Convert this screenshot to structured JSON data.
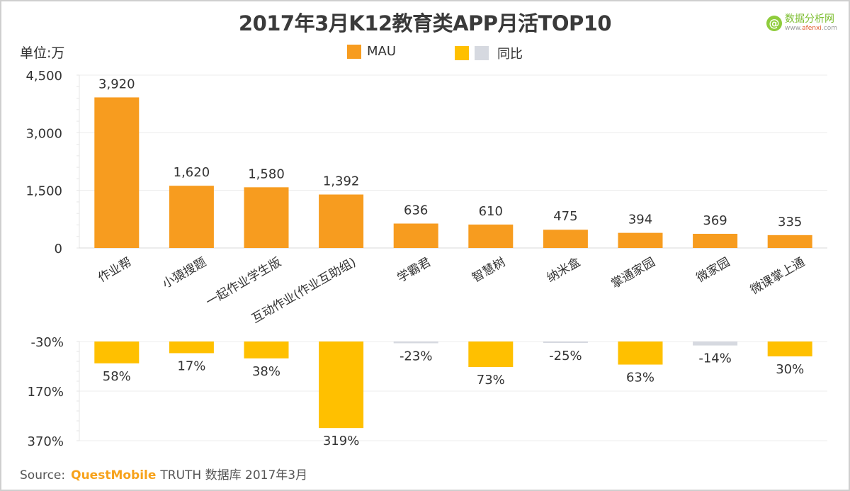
{
  "chart_data": [
    {
      "type": "bar",
      "title": "2017年3月K12教育类APP月活TOP10",
      "ylabel": "单位:万",
      "ylim": [
        0,
        4500
      ],
      "yticks": [
        "4,500",
        "3,000",
        "1,500",
        "0"
      ],
      "ytick_values": [
        4500,
        3000,
        1500,
        0
      ],
      "grid": true,
      "legend": {
        "position": "top-center",
        "entries": [
          "MAU"
        ]
      },
      "categories": [
        "作业帮",
        "小猿搜题",
        "一起作业学生版",
        "互动作业(作业互助组)",
        "学霸君",
        "智慧树",
        "纳米盒",
        "掌通家园",
        "微家园",
        "微课掌上通"
      ],
      "series": [
        {
          "name": "MAU",
          "color": "#f79c1f",
          "values": [
            3920,
            1620,
            1580,
            1392,
            636,
            610,
            475,
            394,
            369,
            335
          ],
          "labels": [
            "3,920",
            "1,620",
            "1,580",
            "1,392",
            "636",
            "610",
            "475",
            "394",
            "369",
            "335"
          ]
        }
      ]
    },
    {
      "type": "bar",
      "ylim": [
        -30,
        370
      ],
      "y_inverted": true,
      "yticks": [
        "-30%",
        "170%",
        "370%"
      ],
      "ytick_values": [
        -30,
        170,
        370
      ],
      "grid": true,
      "legend": {
        "position": "top-center",
        "entries": [
          "同比"
        ]
      },
      "categories": [
        "作业帮",
        "小猿搜题",
        "一起作业学生版",
        "互动作业(作业互助组)",
        "学霸君",
        "智慧树",
        "纳米盒",
        "掌通家园",
        "微家园",
        "微课掌上通"
      ],
      "series": [
        {
          "name": "同比",
          "positive_color": "#ffc000",
          "negative_color": "#d6d9e0",
          "values": [
            58,
            17,
            38,
            319,
            -23,
            73,
            -25,
            63,
            -14,
            30
          ],
          "labels": [
            "58%",
            "17%",
            "38%",
            "319%",
            "-23%",
            "73%",
            "-25%",
            "63%",
            "-14%",
            "30%"
          ]
        }
      ]
    }
  ],
  "header": {
    "title": "2017年3月K12教育类APP月活TOP10",
    "unit": "单位:万"
  },
  "legend": {
    "mau_label": "MAU",
    "yoy_label": "同比",
    "mau_color": "#f79c1f",
    "yoy_pos_color": "#ffc000",
    "yoy_neg_color": "#d6d9e0"
  },
  "logo": {
    "icon": "at-icon",
    "name": "数据分析网",
    "url_prefix": "www.",
    "url_brand": "afenxi",
    "url_suffix": ".com"
  },
  "source": {
    "label": "Source:",
    "brand": "QuestMobile",
    "rest": "TRUTH 数据库 2017年3月"
  }
}
